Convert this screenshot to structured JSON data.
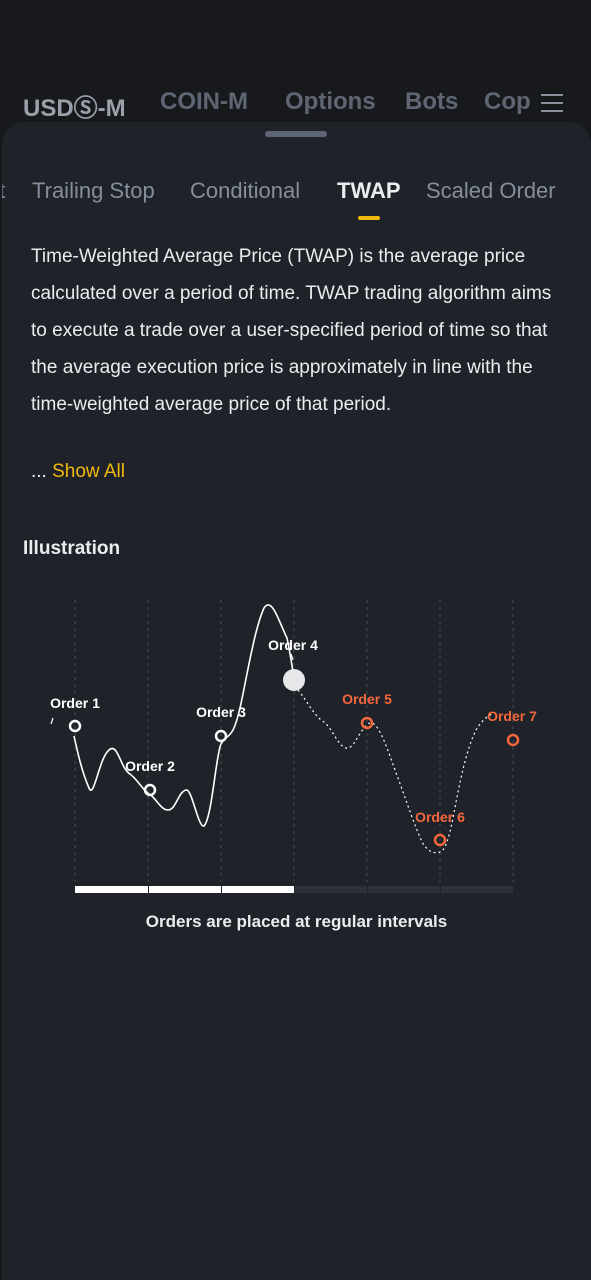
{
  "top_tabs": [
    "USDⓈ-M",
    "COIN-M",
    "Options",
    "Bots",
    "Cop"
  ],
  "sub_tabs": [
    "t",
    "Trailing Stop",
    "Conditional",
    "TWAP",
    "Scaled Order"
  ],
  "description": "Time-Weighted Average Price (TWAP) is the average price calculated over a period of time. TWAP trading algorithm aims to execute a trade over a user-specified period of time so that the average execution price is approximately in line with the time-weighted average price of that period.",
  "show_all": {
    "prefix": "... ",
    "link": "Show All"
  },
  "illustration_title": "Illustration",
  "orders": [
    {
      "label": "Order 1",
      "status": "executed"
    },
    {
      "label": "Order 2",
      "status": "executed"
    },
    {
      "label": "Order 3",
      "status": "executed"
    },
    {
      "label": "Order 4",
      "status": "current"
    },
    {
      "label": "Order 5",
      "status": "pending"
    },
    {
      "label": "Order 6",
      "status": "pending"
    },
    {
      "label": "Order 7",
      "status": "pending"
    }
  ],
  "interval_progress": {
    "completed": 3,
    "total": 6
  },
  "caption": "Orders are placed at regular intervals",
  "colors": {
    "accent": "#f0b90b",
    "pending": "#f6673e",
    "executed": "#ffffff",
    "background": "#1f2329"
  }
}
